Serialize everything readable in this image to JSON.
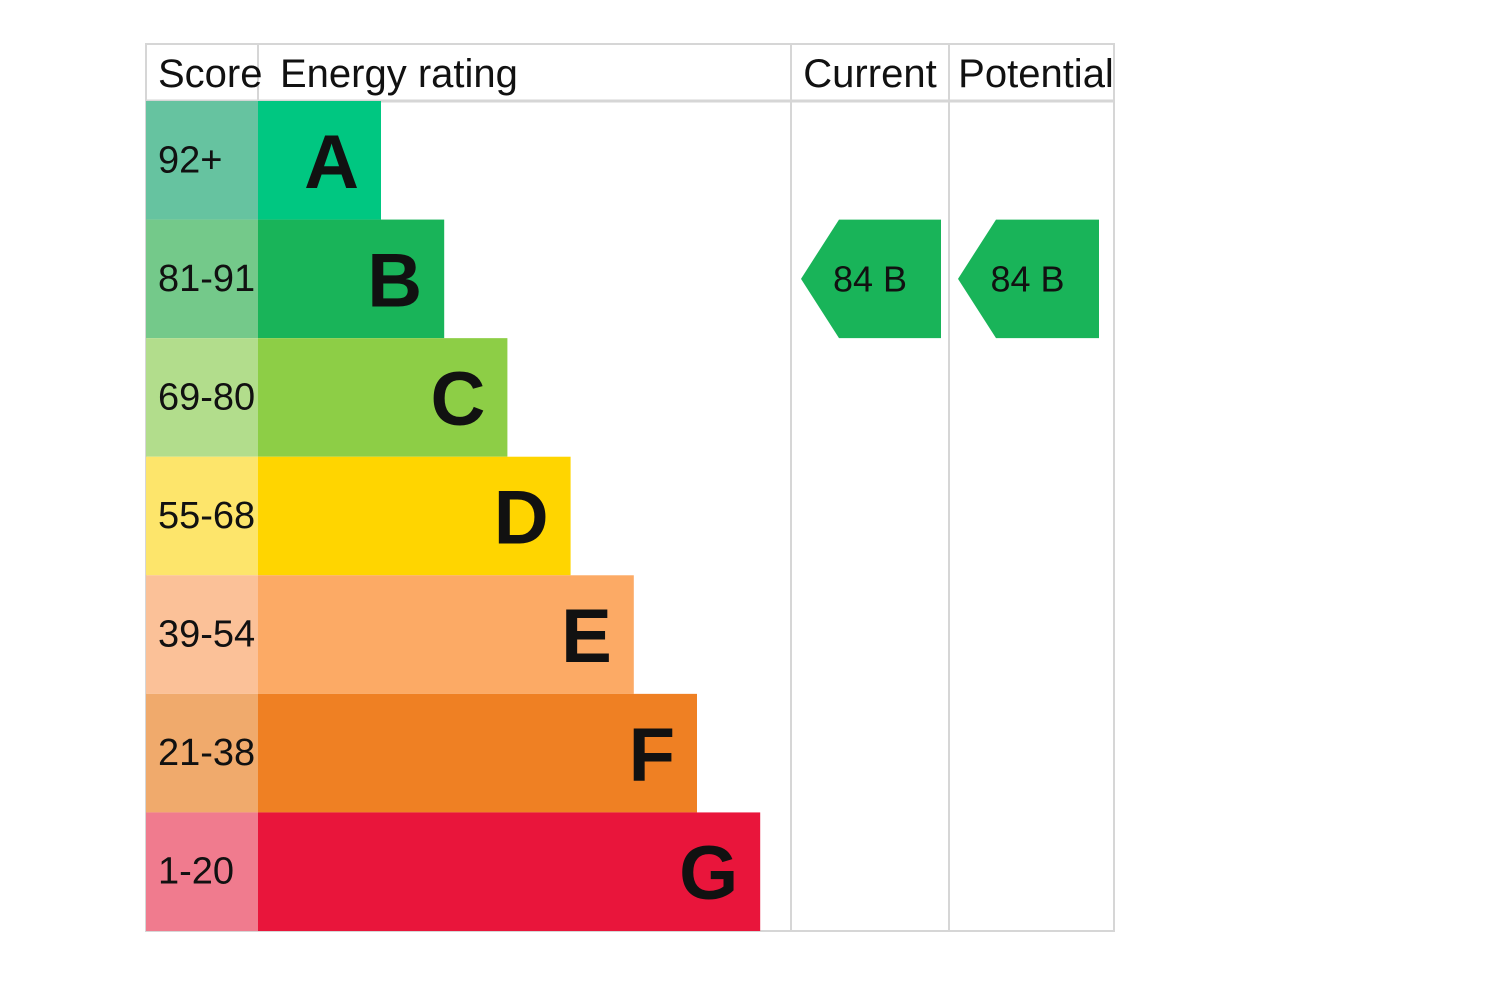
{
  "header": {
    "score": "Score",
    "rating": "Energy rating",
    "current": "Current",
    "potential": "Potential"
  },
  "rows": [
    {
      "score": "92+",
      "band": "A",
      "score_color": "#66c3a0",
      "color": "#00c781"
    },
    {
      "score": "81-91",
      "band": "B",
      "score_color": "#74c98a",
      "color": "#19b459"
    },
    {
      "score": "69-80",
      "band": "C",
      "score_color": "#b2dd8c",
      "color": "#8dce46"
    },
    {
      "score": "55-68",
      "band": "D",
      "score_color": "#fde56b",
      "color": "#ffd500"
    },
    {
      "score": "39-54",
      "band": "E",
      "score_color": "#fbc198",
      "color": "#fcaa65"
    },
    {
      "score": "21-38",
      "band": "F",
      "score_color": "#f0aa6c",
      "color": "#ef8023"
    },
    {
      "score": "1-20",
      "band": "G",
      "score_color": "#f07b8e",
      "color": "#e9153b"
    }
  ],
  "current": {
    "score": 84,
    "band": "B"
  },
  "potential": {
    "score": 84,
    "band": "B"
  }
}
